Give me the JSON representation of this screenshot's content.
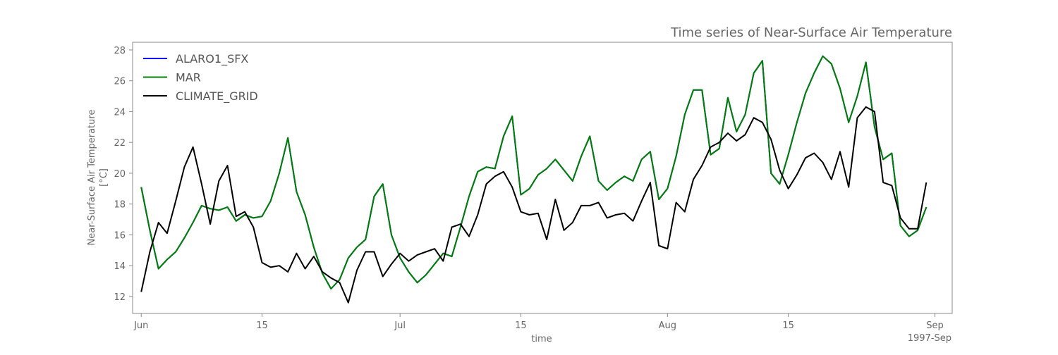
{
  "chart_data": {
    "type": "line",
    "title": "Time series of Near-Surface Air Temperature",
    "xlabel": "time",
    "ylabel_line1": "Near-Surface Air Temperature",
    "ylabel_line2": "[°C]",
    "x_start": "1997-06-01",
    "x_end": "1997-08-31",
    "xlim": [
      "1997-05-31",
      "1997-09-03"
    ],
    "ylim": [
      10.9,
      28.5
    ],
    "x_ticks": [
      {
        "date": "1997-06-01",
        "label": "Jun"
      },
      {
        "date": "1997-06-15",
        "label": "15"
      },
      {
        "date": "1997-07-01",
        "label": "Jul"
      },
      {
        "date": "1997-07-15",
        "label": "15"
      },
      {
        "date": "1997-08-01",
        "label": "Aug"
      },
      {
        "date": "1997-08-15",
        "label": "15"
      },
      {
        "date": "1997-09-01",
        "label": "Sep"
      }
    ],
    "x_offset_label": "1997-Sep",
    "y_ticks": [
      12,
      14,
      16,
      18,
      20,
      22,
      24,
      26,
      28
    ],
    "grid": false,
    "legend_position": "top-left",
    "series": [
      {
        "name": "ALARO1_SFX",
        "color": "#0000ff",
        "values": [
          19.1,
          16.3,
          13.8,
          14.4,
          14.9,
          15.8,
          16.8,
          17.9,
          17.7,
          17.6,
          17.8,
          16.9,
          17.3,
          17.1,
          17.2,
          18.2,
          20.0,
          22.3,
          18.8,
          17.3,
          15.2,
          13.5,
          12.5,
          13.1,
          14.5,
          15.2,
          15.7,
          18.5,
          19.3,
          16.0,
          14.5,
          13.6,
          12.9,
          13.4,
          14.1,
          14.8,
          14.6,
          16.5,
          18.5,
          20.1,
          20.4,
          20.3,
          22.4,
          23.7,
          18.6,
          19.0,
          19.9,
          20.3,
          20.9,
          20.2,
          19.5,
          21.1,
          22.4,
          19.5,
          18.9,
          19.4,
          19.8,
          19.5,
          20.9,
          21.4,
          18.3,
          19.0,
          21.1,
          23.8,
          25.4,
          25.4,
          21.2,
          21.6,
          24.9,
          22.7,
          23.8,
          26.5,
          27.3,
          20.0,
          19.3,
          21.2,
          23.3,
          25.2,
          26.5,
          27.6,
          27.1,
          25.5,
          23.3,
          25.0,
          27.2,
          23.0,
          20.9,
          21.3,
          16.6,
          15.9,
          16.3,
          17.8
        ]
      },
      {
        "name": "MAR",
        "color": "#008000",
        "values": [
          19.1,
          16.3,
          13.8,
          14.4,
          14.9,
          15.8,
          16.8,
          17.9,
          17.7,
          17.6,
          17.8,
          16.9,
          17.3,
          17.1,
          17.2,
          18.2,
          20.0,
          22.3,
          18.8,
          17.3,
          15.2,
          13.5,
          12.5,
          13.1,
          14.5,
          15.2,
          15.7,
          18.5,
          19.3,
          16.0,
          14.5,
          13.6,
          12.9,
          13.4,
          14.1,
          14.8,
          14.6,
          16.5,
          18.5,
          20.1,
          20.4,
          20.3,
          22.4,
          23.7,
          18.6,
          19.0,
          19.9,
          20.3,
          20.9,
          20.2,
          19.5,
          21.1,
          22.4,
          19.5,
          18.9,
          19.4,
          19.8,
          19.5,
          20.9,
          21.4,
          18.3,
          19.0,
          21.1,
          23.8,
          25.4,
          25.4,
          21.2,
          21.6,
          24.9,
          22.7,
          23.8,
          26.5,
          27.3,
          20.0,
          19.3,
          21.2,
          23.3,
          25.2,
          26.5,
          27.6,
          27.1,
          25.5,
          23.3,
          25.0,
          27.2,
          23.0,
          20.9,
          21.3,
          16.6,
          15.9,
          16.3,
          17.8
        ]
      },
      {
        "name": "CLIMATE_GRID",
        "color": "#000000",
        "values": [
          12.3,
          14.9,
          16.8,
          16.1,
          18.2,
          20.4,
          21.7,
          19.3,
          16.7,
          19.5,
          20.5,
          17.2,
          17.5,
          16.5,
          14.2,
          13.9,
          14.0,
          13.6,
          14.8,
          13.8,
          14.6,
          13.6,
          13.2,
          12.9,
          11.6,
          13.7,
          14.9,
          14.9,
          13.3,
          14.1,
          14.8,
          14.3,
          14.7,
          14.9,
          15.1,
          14.3,
          16.5,
          16.7,
          15.9,
          17.3,
          19.3,
          19.8,
          20.1,
          19.1,
          17.5,
          17.3,
          17.4,
          15.7,
          18.3,
          16.3,
          16.8,
          17.9,
          17.9,
          18.1,
          17.1,
          17.3,
          17.4,
          16.9,
          18.2,
          19.4,
          15.3,
          15.1,
          18.1,
          17.5,
          19.6,
          20.5,
          21.7,
          22.0,
          22.6,
          22.1,
          22.5,
          23.6,
          23.3,
          22.2,
          20.2,
          19.0,
          19.9,
          21.0,
          21.3,
          20.7,
          19.6,
          21.4,
          19.1,
          23.6,
          24.3,
          24.0,
          19.4,
          19.2,
          17.1,
          16.4,
          16.4,
          19.4
        ]
      }
    ]
  }
}
